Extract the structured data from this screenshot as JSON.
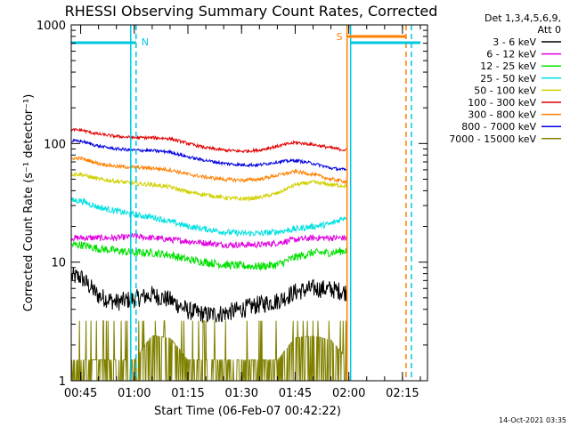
{
  "chart_data": {
    "type": "line",
    "title": "RHESSI Observing Summary Count Rates, Corrected",
    "xlabel": "Start Time (06-Feb-07 00:42:22)",
    "ylabel": "Corrected Count Rate (s⁻¹ detector⁻¹)",
    "y_scale": "log",
    "xlim": [
      "00:42:22",
      "02:22:00"
    ],
    "ylim": [
      1,
      1000
    ],
    "x_ticks": [
      "00:45",
      "01:00",
      "01:15",
      "01:30",
      "01:45",
      "02:00",
      "02:15"
    ],
    "y_ticks": [
      "1",
      "10",
      "100",
      "1000"
    ],
    "legend_header": [
      "Det 1,3,4,5,6,9,",
      "Att 0"
    ],
    "legend_position": "right",
    "series": [
      {
        "name": "3 - 6 keV",
        "color": "#000000",
        "x": [
          "00:45",
          "00:50",
          "00:55",
          "01:00",
          "01:05",
          "01:10",
          "01:15",
          "01:20",
          "01:25",
          "01:30",
          "01:35",
          "01:40",
          "01:45",
          "01:50",
          "01:55",
          "01:59"
        ],
        "y": [
          7.5,
          5.2,
          4.6,
          4.9,
          5.3,
          4.8,
          3.9,
          3.6,
          3.7,
          4.0,
          4.4,
          4.7,
          5.6,
          6.0,
          5.9,
          5.6
        ]
      },
      {
        "name": "6 - 12 keV",
        "color": "#e000e0",
        "x": [
          "00:45",
          "00:50",
          "00:55",
          "01:00",
          "01:05",
          "01:10",
          "01:15",
          "01:20",
          "01:25",
          "01:30",
          "01:35",
          "01:40",
          "01:45",
          "01:50",
          "01:55",
          "01:59"
        ],
        "y": [
          16,
          16,
          16,
          16.5,
          16,
          15.5,
          15,
          14.5,
          14,
          14,
          14,
          14.5,
          15.5,
          16,
          16,
          16
        ]
      },
      {
        "name": "12 - 25 keV",
        "color": "#00e000",
        "x": [
          "00:45",
          "00:50",
          "00:55",
          "01:00",
          "01:05",
          "01:10",
          "01:15",
          "01:20",
          "01:25",
          "01:30",
          "01:35",
          "01:40",
          "01:45",
          "01:50",
          "01:55",
          "01:59"
        ],
        "y": [
          14,
          13,
          12.5,
          12,
          12,
          11.5,
          10.5,
          10,
          9.5,
          9.3,
          9.2,
          9.5,
          11,
          12,
          12,
          12.5
        ]
      },
      {
        "name": "25 - 50 keV",
        "color": "#00e0e0",
        "x": [
          "00:45",
          "00:50",
          "00:55",
          "01:00",
          "01:05",
          "01:10",
          "01:15",
          "01:20",
          "01:25",
          "01:30",
          "01:35",
          "01:40",
          "01:45",
          "01:50",
          "01:55",
          "01:59"
        ],
        "y": [
          33,
          29,
          27,
          25,
          24,
          22,
          20,
          19,
          18,
          17.5,
          17.5,
          18,
          19,
          20,
          21,
          24
        ]
      },
      {
        "name": "50 - 100 keV",
        "color": "#d0d000",
        "x": [
          "00:45",
          "00:50",
          "00:55",
          "01:00",
          "01:05",
          "01:10",
          "01:15",
          "01:20",
          "01:25",
          "01:30",
          "01:35",
          "01:40",
          "01:45",
          "01:50",
          "01:55",
          "01:59"
        ],
        "y": [
          55,
          50,
          48,
          46,
          45,
          43,
          39,
          37,
          35,
          34,
          35,
          38,
          45,
          47,
          45,
          44
        ]
      },
      {
        "name": "100 - 300 keV",
        "color": "#e00000",
        "x": [
          "00:45",
          "00:50",
          "00:55",
          "01:00",
          "01:05",
          "01:10",
          "01:15",
          "01:20",
          "01:25",
          "01:30",
          "01:35",
          "01:40",
          "01:45",
          "01:50",
          "01:55",
          "01:59"
        ],
        "y": [
          130,
          120,
          115,
          112,
          112,
          110,
          100,
          92,
          88,
          86,
          88,
          95,
          102,
          98,
          92,
          88
        ]
      },
      {
        "name": "300 - 800 keV",
        "color": "#ff8000",
        "x": [
          "00:45",
          "00:50",
          "00:55",
          "01:00",
          "01:05",
          "01:10",
          "01:15",
          "01:20",
          "01:25",
          "01:30",
          "01:35",
          "01:40",
          "01:45",
          "01:50",
          "01:55",
          "01:59"
        ],
        "y": [
          75,
          68,
          64,
          63,
          62,
          60,
          55,
          52,
          50,
          49,
          50,
          54,
          58,
          55,
          50,
          48
        ]
      },
      {
        "name": "800 - 7000 keV",
        "color": "#0000e0",
        "x": [
          "00:45",
          "00:50",
          "00:55",
          "01:00",
          "01:05",
          "01:10",
          "01:15",
          "01:20",
          "01:25",
          "01:30",
          "01:35",
          "01:40",
          "01:45",
          "01:50",
          "01:55",
          "01:59"
        ],
        "y": [
          105,
          95,
          90,
          88,
          87,
          85,
          77,
          72,
          68,
          66,
          66,
          70,
          72,
          68,
          62,
          60
        ]
      },
      {
        "name": "7000 - 15000 keV",
        "color": "#808000",
        "x": [
          "00:45",
          "00:50",
          "00:55",
          "01:00",
          "01:05",
          "01:10",
          "01:15",
          "01:20",
          "01:25",
          "01:30",
          "01:35",
          "01:40",
          "01:45",
          "01:50",
          "01:55",
          "01:59"
        ],
        "y": [
          1.5,
          1.5,
          1.5,
          1.5,
          2.4,
          2.3,
          1.5,
          1.5,
          1.5,
          1.5,
          1.5,
          1.5,
          2.3,
          2.4,
          2.2,
          1.6
        ]
      }
    ],
    "annotations": [
      {
        "label": "N",
        "color": "#00c8e0",
        "x_start": "00:42:22",
        "x_end": "01:00:30"
      },
      {
        "label": "S",
        "color": "#ff8000",
        "x_start": "01:59:30",
        "x_end": "02:16:00"
      }
    ],
    "vertical_lines": [
      {
        "x": "00:59:00",
        "color": "#00c8e0",
        "style": "solid"
      },
      {
        "x": "01:00:30",
        "color": "#00c8e0",
        "style": "dashed"
      },
      {
        "x": "01:59:30",
        "color": "#ff8000",
        "style": "solid"
      },
      {
        "x": "02:00:30",
        "color": "#00c8e0",
        "style": "solid"
      },
      {
        "x": "02:16:00",
        "color": "#ff8000",
        "style": "dashed"
      },
      {
        "x": "02:17:30",
        "color": "#00c8e0",
        "style": "dashed"
      }
    ],
    "grid": false
  },
  "footer": {
    "stamp": "14-Oct-2021 03:35"
  }
}
